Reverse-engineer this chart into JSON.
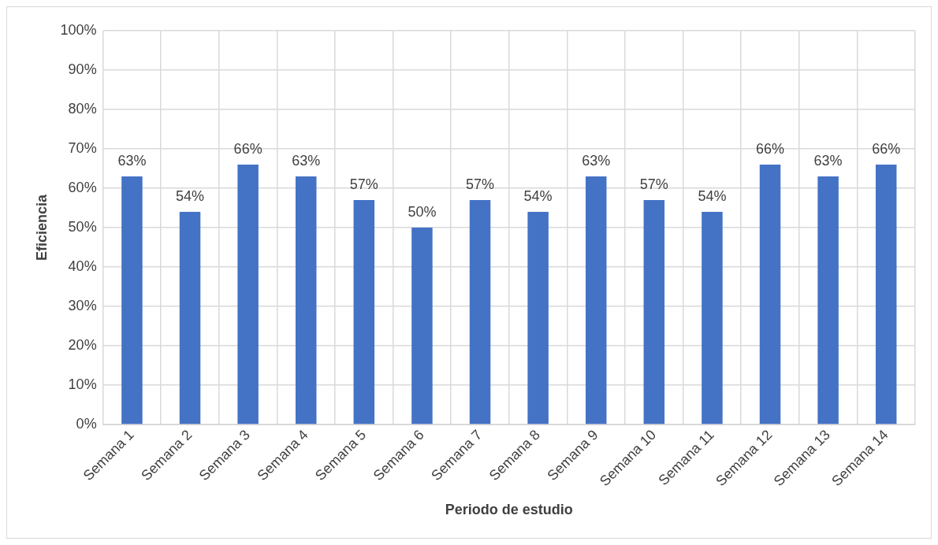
{
  "chart_data": {
    "type": "bar",
    "xlabel": "Periodo de estudio",
    "ylabel": "Eficiencia",
    "categories": [
      "Semana 1",
      "Semana 2",
      "Semana 3",
      "Semana 4",
      "Semana 5",
      "Semana 6",
      "Semana 7",
      "Semana 8",
      "Semana 9",
      "Semana 10",
      "Semana 11",
      "Semana 12",
      "Semana 13",
      "Semana 14"
    ],
    "values": [
      63,
      54,
      66,
      63,
      57,
      50,
      57,
      54,
      63,
      57,
      54,
      66,
      63,
      66
    ],
    "value_labels": [
      "63%",
      "54%",
      "66%",
      "63%",
      "57%",
      "50%",
      "57%",
      "54%",
      "63%",
      "57%",
      "54%",
      "66%",
      "63%",
      "66%"
    ],
    "color": "#4472c4",
    "ylim": [
      0,
      100
    ],
    "yticks": [
      {
        "value": 0,
        "label": "0%"
      },
      {
        "value": 10,
        "label": "10%"
      },
      {
        "value": 20,
        "label": "20%"
      },
      {
        "value": 30,
        "label": "30%"
      },
      {
        "value": 40,
        "label": "40%"
      },
      {
        "value": 50,
        "label": "50%"
      },
      {
        "value": 60,
        "label": "60%"
      },
      {
        "value": 70,
        "label": "70%"
      },
      {
        "value": 80,
        "label": "80%"
      },
      {
        "value": 90,
        "label": "90%"
      },
      {
        "value": 100,
        "label": "100%"
      }
    ],
    "grid": true,
    "legend": false
  }
}
